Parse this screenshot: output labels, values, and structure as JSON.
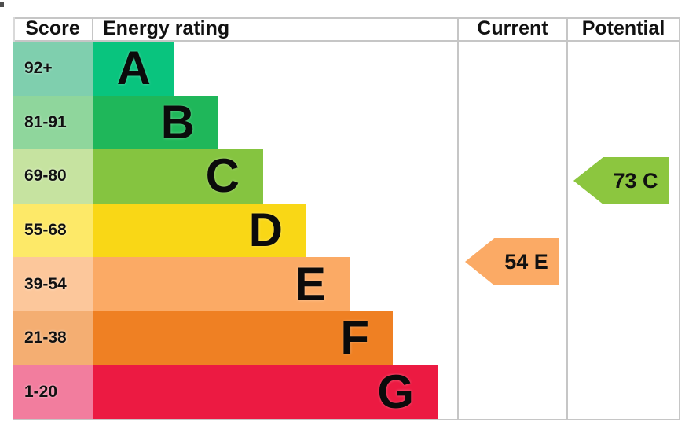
{
  "header": {
    "score": "Score",
    "energy_rating": "Energy rating",
    "current": "Current",
    "potential": "Potential"
  },
  "chart_data": {
    "type": "bar",
    "title": "Energy rating",
    "categories": [
      "A",
      "B",
      "C",
      "D",
      "E",
      "F",
      "G"
    ],
    "bands": [
      {
        "letter": "A",
        "score_range": "92+",
        "min": 92,
        "max": 100,
        "bar_color": "#09c47e",
        "score_bg": "#7fcfae"
      },
      {
        "letter": "B",
        "score_range": "81-91",
        "min": 81,
        "max": 91,
        "bar_color": "#1fb75a",
        "score_bg": "#8fd69c"
      },
      {
        "letter": "C",
        "score_range": "69-80",
        "min": 69,
        "max": 80,
        "bar_color": "#85c440",
        "score_bg": "#c6e3a0"
      },
      {
        "letter": "D",
        "score_range": "55-68",
        "min": 55,
        "max": 68,
        "bar_color": "#f9d716",
        "score_bg": "#fde968"
      },
      {
        "letter": "E",
        "score_range": "39-54",
        "min": 39,
        "max": 54,
        "bar_color": "#fbaa65",
        "score_bg": "#fcc79b"
      },
      {
        "letter": "F",
        "score_range": "21-38",
        "min": 21,
        "max": 38,
        "bar_color": "#ef8023",
        "score_bg": "#f4ae72"
      },
      {
        "letter": "G",
        "score_range": "1-20",
        "min": 1,
        "max": 20,
        "bar_color": "#ec1a42",
        "score_bg": "#f27d9e"
      }
    ],
    "current": {
      "value": 54,
      "band": "E",
      "label": "54 E",
      "color": "#fbaa65"
    },
    "potential": {
      "value": 73,
      "band": "C",
      "label": "73 C",
      "color": "#8cc63f"
    },
    "colors": {
      "grid_border": "#c6c6c6",
      "text": "#111111",
      "background": "#ffffff"
    },
    "layout_hints": {
      "legend": "none",
      "grid": "table-borders",
      "bar_direction": "horizontal"
    }
  }
}
